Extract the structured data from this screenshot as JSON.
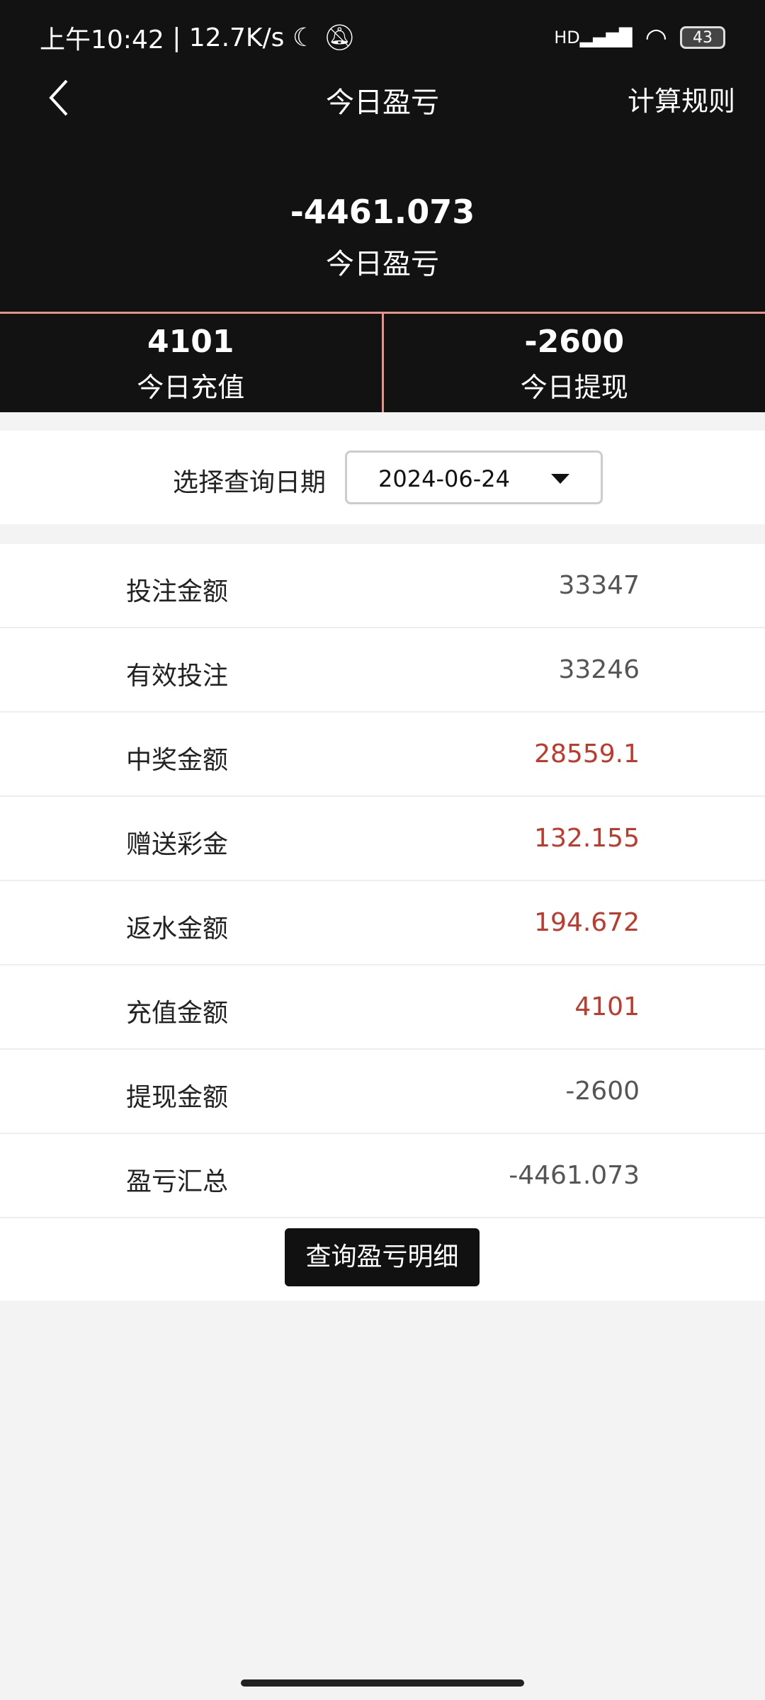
{
  "status_bar": {
    "time": "上午10:42",
    "speed": "12.7K/s",
    "network": "HD",
    "battery": "43"
  },
  "header": {
    "title": "今日盈亏",
    "rules_label": "计算规则"
  },
  "summary": {
    "value": "-4461.073",
    "label": "今日盈亏"
  },
  "stats": [
    {
      "value": "4101",
      "label": "今日充值"
    },
    {
      "value": "-2600",
      "label": "今日提现"
    }
  ],
  "date_filter": {
    "label": "选择查询日期",
    "value": "2024-06-24"
  },
  "rows": [
    {
      "label": "投注金额",
      "value": "33347",
      "highlight": false
    },
    {
      "label": "有效投注",
      "value": "33246",
      "highlight": false
    },
    {
      "label": "中奖金额",
      "value": "28559.1",
      "highlight": true
    },
    {
      "label": "赠送彩金",
      "value": "132.155",
      "highlight": true
    },
    {
      "label": "返水金额",
      "value": "194.672",
      "highlight": true
    },
    {
      "label": "充值金额",
      "value": "4101",
      "highlight": true
    },
    {
      "label": "提现金额",
      "value": "-2600",
      "highlight": false
    },
    {
      "label": "盈亏汇总",
      "value": "-4461.073",
      "highlight": false
    }
  ],
  "detail_button": "查询盈亏明细",
  "colors": {
    "header_bg": "#121212",
    "divider": "#e8928a",
    "highlight": "#c0392b"
  }
}
